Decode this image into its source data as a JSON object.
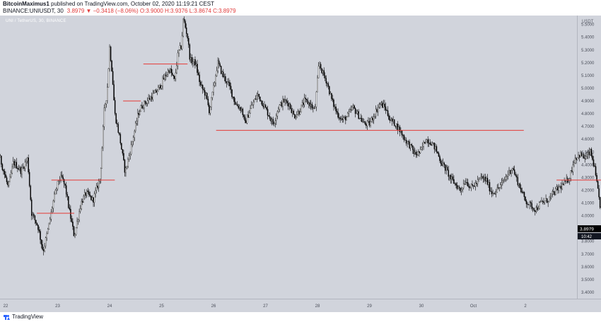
{
  "header": {
    "author": "BitcoinMaximus1",
    "published_text": "published on TradingView.com, October 02, 2020 11:19:21 CEST",
    "symbol": "BINANCE:UNIUSDT, 30",
    "ohlc": "3.8979 ▼ −0.3418 (−8.06%) O:3.9000 H:3.9376 L:3.8674 C:3.8979"
  },
  "legend": {
    "title": "UNI / TetherUS, 30, BINANCE"
  },
  "footer": {
    "brand": "TradingView"
  },
  "colors": {
    "plot_bg": "#d1d4dc",
    "candle": "#000000",
    "levels": "#e53935",
    "header_down": "#e03a3a",
    "price_badge": "#000000"
  },
  "chart_data": {
    "type": "candlestick",
    "title": "UNI / TetherUS, 30, BINANCE",
    "x_ticks": [
      "22",
      "23",
      "24",
      "25",
      "26",
      "27",
      "28",
      "29",
      "30",
      "Oct",
      "2"
    ],
    "y_unit": "USDT",
    "y_ticks": [
      "5.5000",
      "5.4000",
      "5.3000",
      "5.2000",
      "5.1000",
      "5.0000",
      "4.9000",
      "4.8000",
      "4.7000",
      "4.6000",
      "4.5000",
      "4.4000",
      "4.3000",
      "4.2000",
      "4.1000",
      "4.0000",
      "3.8000",
      "3.7000",
      "3.6000",
      "3.5000",
      "3.4000"
    ],
    "ylim": [
      3.35,
      5.57
    ],
    "current_price": "3.8979",
    "countdown": "10:42",
    "price_path": [
      [
        21.5,
        4.38
      ],
      [
        21.62,
        4.45
      ],
      [
        21.75,
        4.3
      ],
      [
        21.88,
        4.47
      ],
      [
        22.05,
        4.22
      ],
      [
        22.15,
        4.42
      ],
      [
        22.3,
        4.35
      ],
      [
        22.42,
        4.45
      ],
      [
        22.5,
        4.02
      ],
      [
        22.62,
        3.92
      ],
      [
        22.72,
        3.72
      ],
      [
        22.82,
        3.9
      ],
      [
        22.92,
        4.12
      ],
      [
        23.02,
        4.28
      ],
      [
        23.08,
        4.3
      ],
      [
        23.15,
        4.22
      ],
      [
        23.22,
        4.05
      ],
      [
        23.32,
        3.84
      ],
      [
        23.45,
        4.1
      ],
      [
        23.55,
        4.18
      ],
      [
        23.68,
        4.12
      ],
      [
        23.78,
        4.25
      ],
      [
        23.82,
        4.3
      ],
      [
        23.9,
        4.85
      ],
      [
        23.95,
        4.95
      ],
      [
        24.0,
        5.32
      ],
      [
        24.05,
        5.12
      ],
      [
        24.1,
        4.8
      ],
      [
        24.2,
        4.6
      ],
      [
        24.3,
        4.34
      ],
      [
        24.42,
        4.55
      ],
      [
        24.55,
        4.8
      ],
      [
        24.62,
        4.86
      ],
      [
        24.72,
        4.9
      ],
      [
        24.85,
        4.95
      ],
      [
        24.95,
        5.0
      ],
      [
        25.05,
        5.08
      ],
      [
        25.15,
        5.15
      ],
      [
        25.25,
        5.06
      ],
      [
        25.32,
        5.28
      ],
      [
        25.38,
        5.33
      ],
      [
        25.42,
        5.55
      ],
      [
        25.5,
        5.4
      ],
      [
        25.55,
        5.22
      ],
      [
        25.65,
        5.2
      ],
      [
        25.75,
        5.02
      ],
      [
        25.85,
        4.95
      ],
      [
        25.92,
        4.82
      ],
      [
        26.0,
        5.0
      ],
      [
        26.08,
        5.2
      ],
      [
        26.18,
        5.1
      ],
      [
        26.3,
        5.02
      ],
      [
        26.42,
        4.88
      ],
      [
        26.55,
        4.83
      ],
      [
        26.6,
        4.72
      ],
      [
        26.72,
        4.85
      ],
      [
        26.85,
        4.95
      ],
      [
        26.95,
        4.88
      ],
      [
        27.05,
        4.8
      ],
      [
        27.15,
        4.72
      ],
      [
        27.25,
        4.85
      ],
      [
        27.35,
        4.9
      ],
      [
        27.45,
        4.88
      ],
      [
        27.55,
        4.78
      ],
      [
        27.65,
        4.82
      ],
      [
        27.75,
        4.9
      ],
      [
        27.85,
        4.88
      ],
      [
        27.95,
        4.82
      ],
      [
        28.03,
        5.2
      ],
      [
        28.1,
        5.12
      ],
      [
        28.18,
        5.05
      ],
      [
        28.28,
        4.9
      ],
      [
        28.38,
        4.8
      ],
      [
        28.48,
        4.75
      ],
      [
        28.58,
        4.78
      ],
      [
        28.68,
        4.85
      ],
      [
        28.8,
        4.78
      ],
      [
        28.9,
        4.72
      ],
      [
        29.0,
        4.72
      ],
      [
        29.1,
        4.8
      ],
      [
        29.2,
        4.88
      ],
      [
        29.3,
        4.85
      ],
      [
        29.4,
        4.75
      ],
      [
        29.5,
        4.72
      ],
      [
        29.6,
        4.66
      ],
      [
        29.68,
        4.6
      ],
      [
        29.78,
        4.55
      ],
      [
        29.88,
        4.48
      ],
      [
        29.98,
        4.5
      ],
      [
        30.08,
        4.6
      ],
      [
        30.18,
        4.58
      ],
      [
        30.28,
        4.52
      ],
      [
        30.38,
        4.42
      ],
      [
        30.48,
        4.36
      ],
      [
        30.55,
        4.3
      ],
      [
        30.65,
        4.25
      ],
      [
        30.75,
        4.2
      ],
      [
        30.85,
        4.28
      ],
      [
        30.95,
        4.22
      ],
      [
        31.05,
        4.25
      ],
      [
        31.15,
        4.3
      ],
      [
        31.25,
        4.28
      ],
      [
        31.35,
        4.18
      ],
      [
        31.45,
        4.2
      ],
      [
        31.55,
        4.25
      ],
      [
        31.65,
        4.32
      ],
      [
        31.75,
        4.38
      ],
      [
        31.82,
        4.3
      ],
      [
        31.92,
        4.2
      ],
      [
        32.0,
        4.12
      ],
      [
        32.1,
        4.08
      ],
      [
        32.2,
        4.05
      ],
      [
        32.3,
        4.1
      ],
      [
        32.42,
        4.12
      ],
      [
        32.55,
        4.18
      ],
      [
        32.65,
        4.22
      ],
      [
        32.75,
        4.25
      ],
      [
        32.85,
        4.3
      ],
      [
        32.95,
        4.45
      ],
      [
        33.05,
        4.48
      ],
      [
        33.15,
        4.45
      ],
      [
        33.25,
        4.5
      ],
      [
        33.32,
        4.4
      ],
      [
        33.4,
        4.18
      ],
      [
        33.45,
        4.05
      ],
      [
        33.52,
        4.12
      ],
      [
        33.58,
        4.2
      ],
      [
        33.66,
        4.24
      ],
      [
        33.75,
        4.2
      ],
      [
        33.82,
        4.22
      ],
      [
        33.9,
        4.18
      ],
      [
        33.95,
        4.02
      ],
      [
        34.0,
        3.95
      ],
      [
        34.06,
        3.9
      ]
    ],
    "levels": [
      {
        "x0": 22.6,
        "x1": 23.32,
        "y": 4.02
      },
      {
        "x0": 22.88,
        "x1": 24.1,
        "y": 4.28
      },
      {
        "x0": 24.26,
        "x1": 24.6,
        "y": 4.9
      },
      {
        "x0": 24.65,
        "x1": 25.5,
        "y": 5.19
      },
      {
        "x0": 26.05,
        "x1": 31.97,
        "y": 4.67
      },
      {
        "x0": 32.6,
        "x1": 33.47,
        "y": 4.28
      }
    ]
  }
}
